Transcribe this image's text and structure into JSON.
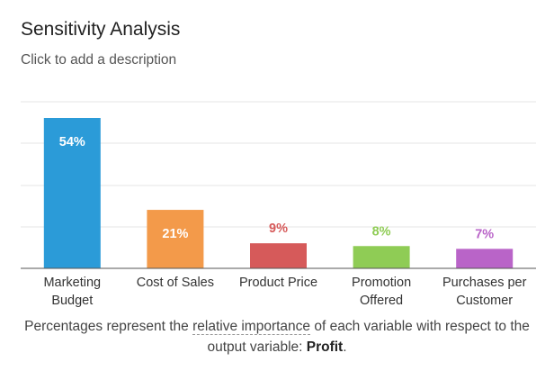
{
  "header": {
    "title": "Sensitivity Analysis",
    "subtitle": "Click to add a description"
  },
  "chart_data": {
    "type": "bar",
    "categories": [
      [
        "Marketing",
        "Budget"
      ],
      [
        "Cost of Sales"
      ],
      [
        "Product Price"
      ],
      [
        "Promotion",
        "Offered"
      ],
      [
        "Purchases per",
        "Customer"
      ]
    ],
    "values": [
      54,
      21,
      9,
      8,
      7
    ],
    "labels": [
      "54%",
      "21%",
      "9%",
      "8%",
      "7%"
    ],
    "colors": [
      "#2b9bd8",
      "#f39a4a",
      "#d65a5a",
      "#8fcc55",
      "#b964c8"
    ],
    "ylim": [
      0,
      54
    ],
    "grid": true,
    "legend": "none"
  },
  "footnote": {
    "prefix": "Percentages represent the ",
    "term": "relative importance",
    "middle": " of each variable with respect to the output variable: ",
    "variable": "Profit",
    "suffix": "."
  }
}
